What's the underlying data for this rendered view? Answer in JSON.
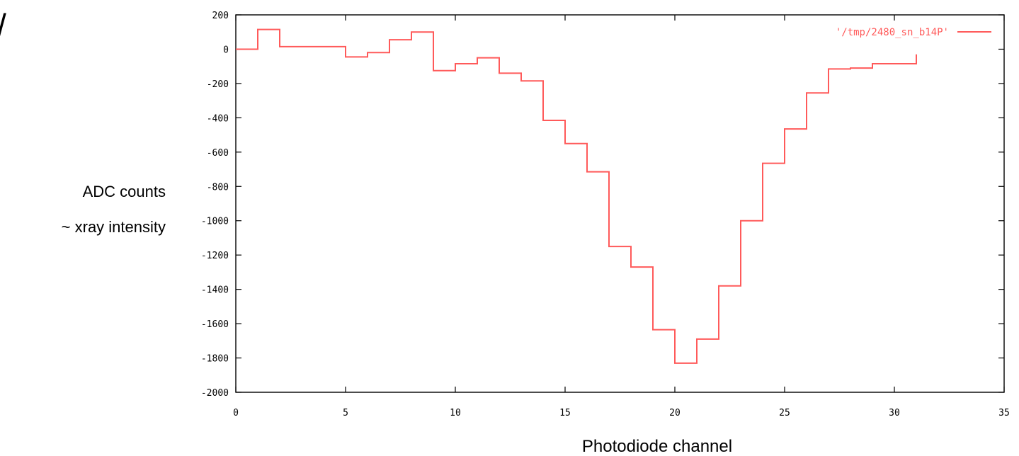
{
  "corner_glyph": "/",
  "chart_data": {
    "type": "line",
    "step": "post",
    "xlabel": "Photodiode channel",
    "ylabel_lines": [
      "ADC counts",
      "~ xray intensity"
    ],
    "xlim": [
      0,
      35
    ],
    "ylim": [
      -2000,
      200
    ],
    "xticks": [
      0,
      5,
      10,
      15,
      20,
      25,
      30,
      35
    ],
    "yticks": [
      200,
      0,
      -200,
      -400,
      -600,
      -800,
      -1000,
      -1200,
      -1400,
      -1600,
      -1800,
      -2000
    ],
    "grid": false,
    "legend_position": "top-right",
    "series": [
      {
        "name": "'/tmp/2480_sn_b14P'",
        "color": "#ff5a5a",
        "x": [
          0,
          1,
          2,
          3,
          4,
          5,
          6,
          7,
          8,
          9,
          10,
          11,
          12,
          13,
          14,
          15,
          16,
          17,
          18,
          19,
          20,
          21,
          22,
          23,
          24,
          25,
          26,
          27,
          28,
          29,
          30,
          31
        ],
        "y": [
          0,
          115,
          15,
          15,
          15,
          -45,
          -20,
          55,
          100,
          -125,
          -85,
          -50,
          -140,
          -185,
          -415,
          -550,
          -715,
          -1150,
          -1270,
          -1635,
          -1830,
          -1690,
          -1380,
          -1000,
          -665,
          -465,
          -255,
          -115,
          -110,
          -85,
          -85,
          -30
        ]
      }
    ]
  }
}
